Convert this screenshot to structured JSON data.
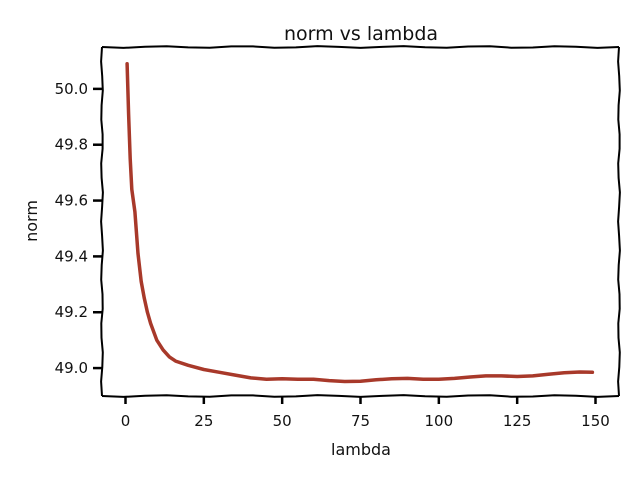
{
  "chart_data": {
    "type": "line",
    "title": "norm vs lambda",
    "xlabel": "lambda",
    "ylabel": "norm",
    "xlim": [
      -7.5,
      157.5
    ],
    "ylim": [
      48.9,
      50.15
    ],
    "x_ticks": [
      "0",
      "25",
      "50",
      "75",
      "100",
      "125",
      "150"
    ],
    "y_ticks": [
      "49.0",
      "49.2",
      "49.4",
      "49.6",
      "49.8",
      "50.0"
    ],
    "grid": false,
    "legend": "none",
    "series": [
      {
        "color": "#a8392a",
        "x": [
          0.5,
          1,
          1.5,
          2,
          3,
          4,
          5,
          6,
          7,
          8,
          10,
          12,
          14,
          16,
          20,
          25,
          30,
          35,
          40,
          45,
          50,
          55,
          60,
          65,
          70,
          75,
          80,
          85,
          90,
          95,
          100,
          105,
          110,
          115,
          120,
          125,
          130,
          135,
          140,
          145,
          149
        ],
        "y": [
          50.09,
          49.91,
          49.75,
          49.64,
          49.56,
          49.41,
          49.31,
          49.25,
          49.2,
          49.16,
          49.1,
          49.065,
          49.04,
          49.025,
          49.01,
          48.995,
          48.985,
          48.975,
          48.965,
          48.96,
          48.962,
          48.96,
          48.96,
          48.955,
          48.952,
          48.953,
          48.958,
          48.962,
          48.963,
          48.96,
          48.96,
          48.963,
          48.968,
          48.972,
          48.972,
          48.97,
          48.972,
          48.978,
          48.983,
          48.986,
          48.985
        ]
      }
    ]
  }
}
